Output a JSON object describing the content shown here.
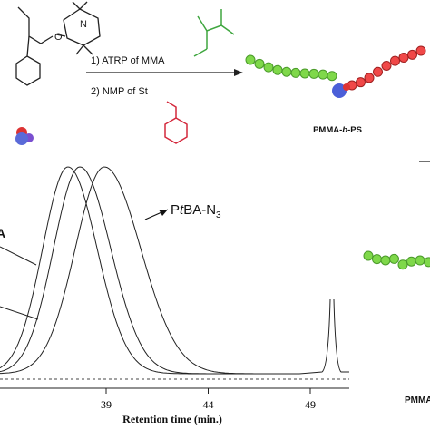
{
  "scheme": {
    "step1": "1) ATRP of MMA",
    "step2": "2) NMP of St",
    "product": [
      "PMMA-",
      "b",
      "-PS"
    ]
  },
  "plot": {
    "curve_label": [
      "P",
      "t",
      "BA-N",
      "3"
    ],
    "left_label": "A",
    "x_ticks": [
      39,
      44,
      49
    ],
    "x_label": "Retention time (min.)"
  },
  "right_panel": {
    "label": "PMMA"
  }
}
